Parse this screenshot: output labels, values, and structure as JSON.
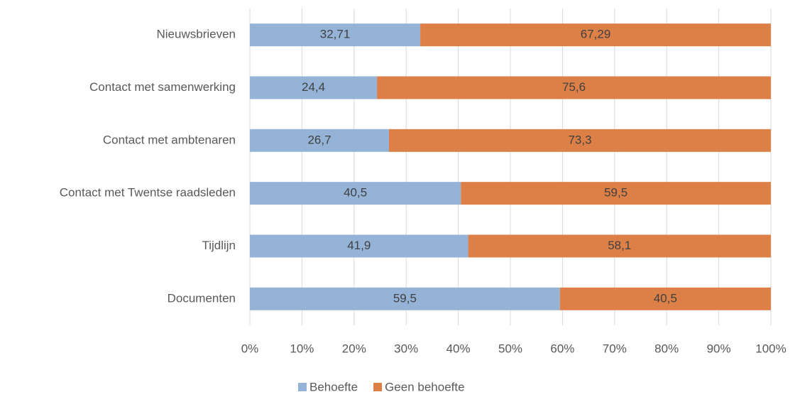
{
  "chart_data": {
    "type": "bar",
    "orientation": "horizontal",
    "stacked": true,
    "categories": [
      "Nieuwsbrieven",
      "Contact met samenwerking",
      "Contact met ambtenaren",
      "Contact met Twentse raadsleden",
      "Tijdlijn",
      "Documenten"
    ],
    "series": [
      {
        "name": "Behoefte",
        "color": "#95b3d7",
        "values": [
          32.71,
          24.4,
          26.7,
          40.5,
          41.9,
          59.5
        ],
        "value_labels": [
          "32,71",
          "24,4",
          "26,7",
          "40,5",
          "41,9",
          "59,5"
        ]
      },
      {
        "name": "Geen behoefte",
        "color": "#dd8047",
        "values": [
          67.29,
          75.6,
          73.3,
          59.5,
          58.1,
          40.5
        ],
        "value_labels": [
          "67,29",
          "75,6",
          "73,3",
          "59,5",
          "58,1",
          "40,5"
        ]
      }
    ],
    "xlim": [
      0,
      100
    ],
    "xticks": [
      {
        "value": 0,
        "label": "0%"
      },
      {
        "value": 10,
        "label": "10%"
      },
      {
        "value": 20,
        "label": "20%"
      },
      {
        "value": 30,
        "label": "30%"
      },
      {
        "value": 40,
        "label": "40%"
      },
      {
        "value": 50,
        "label": "50%"
      },
      {
        "value": 60,
        "label": "60%"
      },
      {
        "value": 70,
        "label": "70%"
      },
      {
        "value": 80,
        "label": "80%"
      },
      {
        "value": 90,
        "label": "90%"
      },
      {
        "value": 100,
        "label": "100%"
      }
    ],
    "grid": true,
    "legend": "bottom"
  }
}
